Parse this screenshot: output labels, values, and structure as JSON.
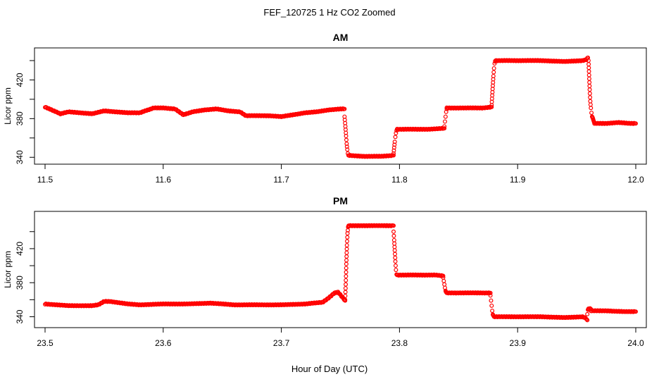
{
  "figure": {
    "suptitle": "FEF_120725  1 Hz CO2 Zoomed",
    "xlabel": "Hour of Day (UTC)"
  },
  "colors": {
    "points": "#ff0000",
    "axis": "#000000"
  },
  "chart_data": [
    {
      "type": "scatter",
      "title": "AM",
      "xlabel": "",
      "ylabel": "Licor ppm",
      "xlim": [
        11.5,
        12.0
      ],
      "ylim": [
        338,
        448
      ],
      "xticks": [
        "11.5",
        "11.6",
        "11.7",
        "11.8",
        "11.9",
        "12.0"
      ],
      "yticks": [
        "340",
        "380",
        "420"
      ],
      "grid": false,
      "marker": "open-circle",
      "color": "#ff0000",
      "segments": [
        {
          "x": [
            11.5,
            11.513,
            11.52,
            11.53,
            11.54,
            11.55,
            11.56,
            11.57,
            11.58,
            11.592,
            11.6,
            11.61,
            11.617,
            11.625,
            11.635,
            11.645,
            11.655,
            11.665,
            11.67,
            11.68,
            11.69,
            11.7,
            11.71,
            11.72,
            11.73,
            11.74,
            11.75,
            11.7535
          ],
          "y": [
            392,
            385,
            387,
            386,
            385,
            388,
            387,
            386,
            386,
            391,
            391,
            390,
            384,
            387,
            389,
            390,
            388,
            387,
            383,
            383,
            383,
            382,
            384,
            386,
            387,
            389,
            390,
            390
          ]
        },
        {
          "x": [
            11.7535,
            11.7542,
            11.7548,
            11.7553,
            11.7558,
            11.7563,
            11.7568
          ],
          "y": [
            382,
            372,
            362,
            354,
            348,
            344,
            342
          ]
        },
        {
          "x": [
            11.757,
            11.77,
            11.785,
            11.795
          ],
          "y": [
            342,
            341,
            341,
            342
          ]
        },
        {
          "x": [
            11.795,
            11.7955,
            11.796,
            11.7965,
            11.797,
            11.7975,
            11.798
          ],
          "y": [
            344,
            350,
            356,
            361,
            365,
            368,
            369
          ]
        },
        {
          "x": [
            11.798,
            11.81,
            11.825,
            11.838
          ],
          "y": [
            369,
            369,
            369,
            370
          ]
        },
        {
          "x": [
            11.838,
            11.8385,
            11.839,
            11.8395,
            11.84
          ],
          "y": [
            372,
            377,
            382,
            387,
            390
          ]
        },
        {
          "x": [
            11.84,
            11.855,
            11.87,
            11.878
          ],
          "y": [
            391,
            391,
            391,
            392
          ]
        },
        {
          "x": [
            11.878,
            11.8785,
            11.879,
            11.8795,
            11.88,
            11.8805,
            11.881
          ],
          "y": [
            394,
            404,
            414,
            424,
            432,
            437,
            439
          ]
        },
        {
          "x": [
            11.881,
            11.9,
            11.92,
            11.94,
            11.955,
            11.958,
            11.9595
          ],
          "y": [
            440,
            440,
            440,
            439,
            440,
            441,
            443
          ]
        },
        {
          "x": [
            11.96,
            11.9605,
            11.961,
            11.9615,
            11.962,
            11.9625,
            11.963,
            11.964,
            11.965
          ],
          "y": [
            440,
            425,
            410,
            398,
            391,
            386,
            382,
            379,
            376
          ]
        },
        {
          "x": [
            11.965,
            11.975,
            11.985,
            11.995,
            12.0
          ],
          "y": [
            375,
            375,
            376,
            375,
            375
          ]
        }
      ]
    },
    {
      "type": "scatter",
      "title": "PM",
      "xlabel": "",
      "ylabel": "Licor ppm",
      "xlim": [
        23.5,
        24.0
      ],
      "ylim": [
        333,
        458
      ],
      "xticks": [
        "23.5",
        "23.6",
        "23.7",
        "23.8",
        "23.9",
        "24.0"
      ],
      "yticks": [
        "340",
        "380",
        "420"
      ],
      "grid": false,
      "marker": "open-circle",
      "color": "#ff0000",
      "segments": [
        {
          "x": [
            23.5,
            23.51,
            23.52,
            23.53,
            23.54,
            23.545,
            23.55,
            23.555,
            23.56,
            23.57,
            23.58,
            23.6,
            23.62,
            23.64,
            23.66,
            23.68,
            23.7,
            23.72,
            23.735,
            23.74,
            23.745,
            23.748,
            23.751,
            23.754
          ],
          "y": [
            355,
            354,
            353,
            353,
            353,
            354,
            358,
            358,
            357,
            355,
            354,
            355,
            355,
            356,
            354,
            354,
            354,
            355,
            357,
            362,
            368,
            369,
            364,
            359
          ]
        },
        {
          "x": [
            23.754,
            23.7545,
            23.755,
            23.7555,
            23.756,
            23.7565,
            23.757
          ],
          "y": [
            360,
            378,
            402,
            424,
            438,
            445,
            447
          ]
        },
        {
          "x": [
            23.757,
            23.77,
            23.785,
            23.795
          ],
          "y": [
            447,
            447,
            447,
            447
          ]
        },
        {
          "x": [
            23.795,
            23.7955,
            23.796,
            23.7965,
            23.797,
            23.7975,
            23.798
          ],
          "y": [
            440,
            430,
            418,
            405,
            395,
            390,
            389
          ]
        },
        {
          "x": [
            23.798,
            23.815,
            23.83,
            23.837
          ],
          "y": [
            389,
            389,
            389,
            388
          ]
        },
        {
          "x": [
            23.837,
            23.8375,
            23.838,
            23.8385,
            23.839,
            23.8395,
            23.84
          ],
          "y": [
            386,
            382,
            378,
            374,
            371,
            369,
            368
          ]
        },
        {
          "x": [
            23.84,
            23.855,
            23.87,
            23.877
          ],
          "y": [
            368,
            368,
            368,
            368
          ]
        },
        {
          "x": [
            23.877,
            23.8775,
            23.878,
            23.8785,
            23.879,
            23.8795,
            23.88
          ],
          "y": [
            365,
            359,
            353,
            347,
            343,
            341,
            340
          ]
        },
        {
          "x": [
            23.88,
            23.9,
            23.92,
            23.94,
            23.955,
            23.958,
            23.959
          ],
          "y": [
            340,
            340,
            340,
            339,
            340,
            338,
            336
          ]
        },
        {
          "x": [
            23.959,
            23.9595,
            23.96,
            23.962
          ],
          "y": [
            343,
            348,
            350,
            349
          ]
        },
        {
          "x": [
            23.962,
            23.975,
            23.99,
            24.0
          ],
          "y": [
            347,
            347,
            346,
            346
          ]
        }
      ]
    }
  ]
}
